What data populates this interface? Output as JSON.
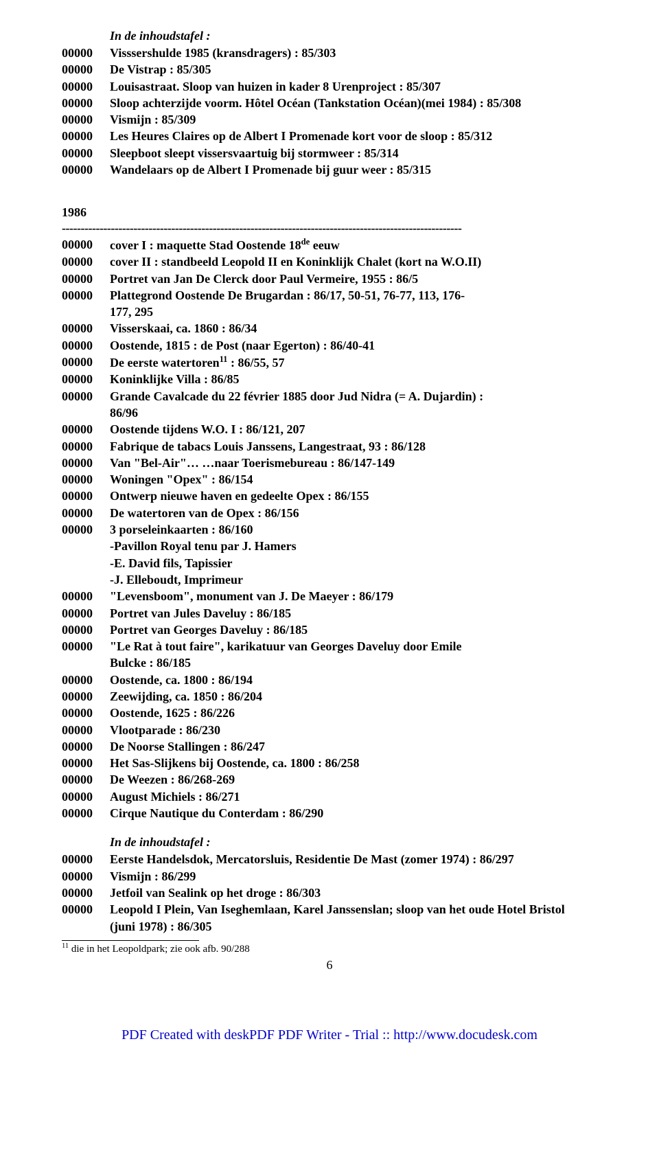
{
  "top_heading": "In de inhoudstafel :",
  "top_block": [
    {
      "code": "00000",
      "text": "Visssershulde 1985 (kransdragers) : 85/303"
    },
    {
      "code": "00000",
      "text": "De Vistrap : 85/305"
    },
    {
      "code": "00000",
      "text": "Louisastraat. Sloop van huizen in kader 8 Urenproject : 85/307"
    },
    {
      "code": "00000",
      "text": "Sloop achterzijde voorm. Hôtel Océan (Tankstation Océan)(mei 1984) : 85/308"
    },
    {
      "code": "00000",
      "text": "Vismijn : 85/309"
    },
    {
      "code": "00000",
      "text": "Les Heures Claires op de Albert I Promenade kort voor de sloop : 85/312"
    },
    {
      "code": "00000",
      "text": "Sleepboot sleept vissersvaartuig bij stormweer : 85/314"
    },
    {
      "code": "00000",
      "text": "Wandelaars op de Albert I Promenade bij guur weer : 85/315"
    }
  ],
  "year": "1986",
  "dashes": "----------------------------------------------------------------------------------------------------------",
  "main_block": [
    {
      "code": "00000",
      "html": "cover I : maquette Stad Oostende 18<sup>de</sup> eeuw"
    },
    {
      "code": "00000",
      "text": "cover II : standbeeld Leopold II  en Koninklijk Chalet (kort na W.O.II)"
    },
    {
      "code": "00000",
      "text": "Portret van Jan De Clerck door Paul Vermeire, 1955 : 86/5"
    },
    {
      "code": "00000",
      "text": "Plattegrond Oostende De Brugardan : 86/17, 50-51, 76-77, 113, 176-",
      "cont": [
        "177, 295"
      ]
    },
    {
      "code": "00000",
      "text": "Visserskaai, ca. 1860 : 86/34"
    },
    {
      "code": "00000",
      "text": "Oostende, 1815 : de Post (naar Egerton) : 86/40-41"
    },
    {
      "code": "00000",
      "html": "De eerste watertoren<sup>11</sup> : 86/55, 57"
    },
    {
      "code": "00000",
      "text": "Koninklijke Villa : 86/85"
    },
    {
      "code": "00000",
      "text": "Grande Cavalcade du 22 février 1885 door Jud Nidra (= A. Dujardin) :",
      "cont": [
        "86/96"
      ]
    },
    {
      "code": "00000",
      "text": "Oostende tijdens W.O. I : 86/121, 207"
    },
    {
      "code": "00000",
      "text": "Fabrique de tabacs Louis Janssens, Langestraat, 93 : 86/128"
    },
    {
      "code": "00000",
      "text": "Van \"Bel-Air\"… …naar Toerismebureau : 86/147-149"
    },
    {
      "code": "00000",
      "text": "Woningen \"Opex\" : 86/154"
    },
    {
      "code": "00000",
      "text": "Ontwerp nieuwe haven en gedeelte Opex : 86/155"
    },
    {
      "code": "00000",
      "text": "De watertoren van de Opex : 86/156"
    },
    {
      "code": "00000",
      "text": "3 porseleinkaarten : 86/160",
      "cont": [
        "-Pavillon Royal tenu par J. Hamers",
        "-E. David fils, Tapissier",
        "-J. Elleboudt, Imprimeur"
      ]
    },
    {
      "code": "00000",
      "text": "\"Levensboom\", monument van J. De Maeyer : 86/179"
    },
    {
      "code": "00000",
      "text": "Portret van Jules Daveluy : 86/185"
    },
    {
      "code": "00000",
      "text": "Portret van Georges Daveluy : 86/185"
    },
    {
      "code": "00000",
      "text": "\"Le Rat à tout faire\", karikatuur van Georges Daveluy door Emile",
      "cont": [
        "Bulcke  : 86/185"
      ]
    },
    {
      "code": "00000",
      "text": "Oostende, ca. 1800 : 86/194"
    },
    {
      "code": "00000",
      "text": "Zeewijding, ca. 1850 : 86/204"
    },
    {
      "code": "00000",
      "text": "Oostende, 1625 : 86/226"
    },
    {
      "code": "00000",
      "text": "Vlootparade : 86/230"
    },
    {
      "code": "00000",
      "text": "De Noorse Stallingen : 86/247"
    },
    {
      "code": "00000",
      "text": "Het Sas-Slijkens bij Oostende, ca. 1800 : 86/258"
    },
    {
      "code": "00000",
      "text": "De Weezen : 86/268-269"
    },
    {
      "code": "00000",
      "text": "August Michiels : 86/271"
    },
    {
      "code": "00000",
      "text": "Cirque Nautique du Conterdam : 86/290"
    }
  ],
  "mid_heading": "In de inhoudstafel :",
  "bottom_block": [
    {
      "code": "00000",
      "text": "Eerste Handelsdok, Mercatorsluis, Residentie De Mast (zomer 1974) : 86/297"
    },
    {
      "code": "00000",
      "text": "Vismijn : 86/299"
    },
    {
      "code": "00000",
      "text": "Jetfoil van Sealink op het droge : 86/303"
    },
    {
      "code": "00000",
      "text": "Leopold I Plein, Van Iseghemlaan, Karel Janssenslan; sloop van het oude Hotel Bristol",
      "cont": [
        "(juni 1978) : 86/305"
      ]
    }
  ],
  "footnote": "11 die in het Leopoldpark; zie ook afb. 90/288",
  "page_num": "6",
  "pdf_footer": "PDF Created with deskPDF PDF Writer - Trial :: http://www.docudesk.com"
}
